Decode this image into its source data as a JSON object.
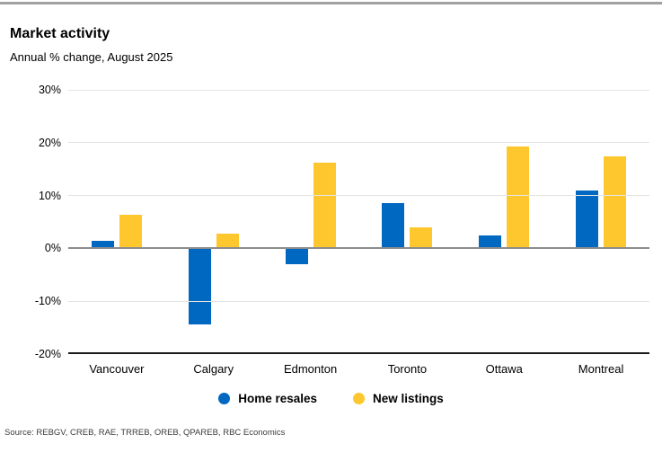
{
  "page": {
    "title": "Market activity",
    "subtitle": "Annual % change, August 2025",
    "source": "Source: REBGV, CREB, RAE, TRREB, OREB, QPAREB, RBC Economics"
  },
  "colors": {
    "resales_blue": "#0068c1",
    "listings_yellow": "#fec72e",
    "gridline": "#e4e4e4",
    "zero_line": "#8c8c8c",
    "axis_line": "#1a1a1a",
    "top_rule": "#a2a2a2"
  },
  "legend": {
    "items": [
      {
        "label": "Home resales",
        "color": "#0068c1"
      },
      {
        "label": "New listings",
        "color": "#fec72e"
      }
    ]
  },
  "chart_data": {
    "type": "bar",
    "title": "Market activity",
    "subtitle": "Annual % change, August 2025",
    "xlabel": "",
    "ylabel": "Annual % change",
    "categories": [
      "Vancouver",
      "Calgary",
      "Edmonton",
      "Toronto",
      "Ottawa",
      "Montreal"
    ],
    "series": [
      {
        "name": "Home resales",
        "color": "#0068c1",
        "values": [
          1.5,
          -14.3,
          -2.9,
          8.6,
          2.5,
          10.9
        ]
      },
      {
        "name": "New listings",
        "color": "#fec72e",
        "values": [
          6.3,
          2.8,
          16.2,
          4.0,
          19.3,
          17.4
        ]
      }
    ],
    "ylim": [
      -20,
      30
    ],
    "yticks": [
      {
        "value": 30,
        "label": "30%"
      },
      {
        "value": 20,
        "label": "20%"
      },
      {
        "value": 10,
        "label": "10%"
      },
      {
        "value": 0,
        "label": "0%"
      },
      {
        "value": -10,
        "label": "-10%"
      },
      {
        "value": -20,
        "label": "-20%"
      }
    ],
    "grid": true,
    "legend_position": "bottom"
  }
}
